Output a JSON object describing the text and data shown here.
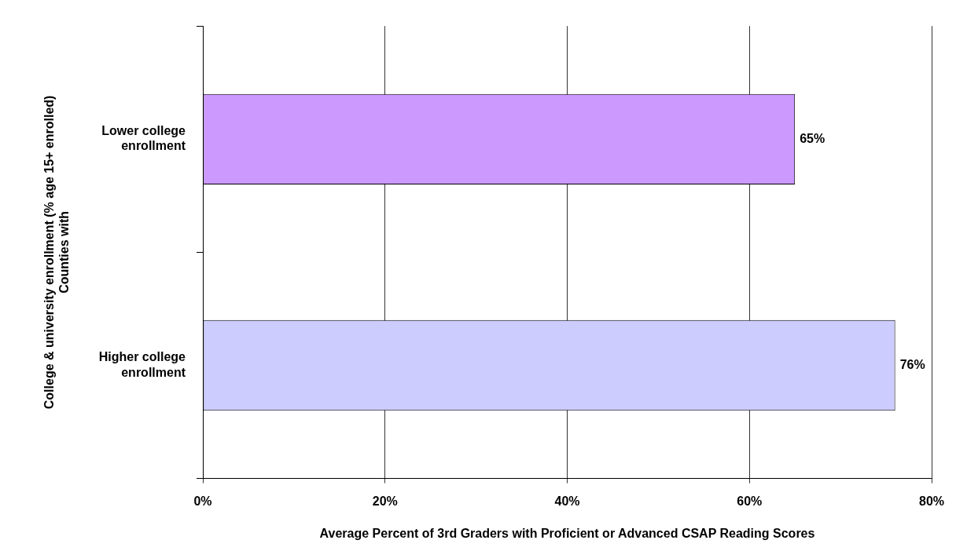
{
  "chart_data": {
    "type": "bar",
    "orientation": "horizontal",
    "categories": [
      "Lower college enrollment",
      "Higher college enrollment"
    ],
    "values": [
      65,
      76
    ],
    "colors": [
      "#cc99ff",
      "#ccccff"
    ],
    "value_labels": [
      "65%",
      "76%"
    ],
    "xlim": [
      0,
      80
    ],
    "xticks": [
      {
        "value": 0,
        "label": "0%"
      },
      {
        "value": 20,
        "label": "20%"
      },
      {
        "value": 40,
        "label": "40%"
      },
      {
        "value": 60,
        "label": "60%"
      },
      {
        "value": 80,
        "label": "80%"
      }
    ],
    "xlabel": "Average Percent of 3rd Graders with Proficient or Advanced CSAP Reading Scores",
    "ylabel": "College & university enrollment (% age 15+ enrolled)\nCounties with",
    "grid": "x",
    "legend": false
  }
}
